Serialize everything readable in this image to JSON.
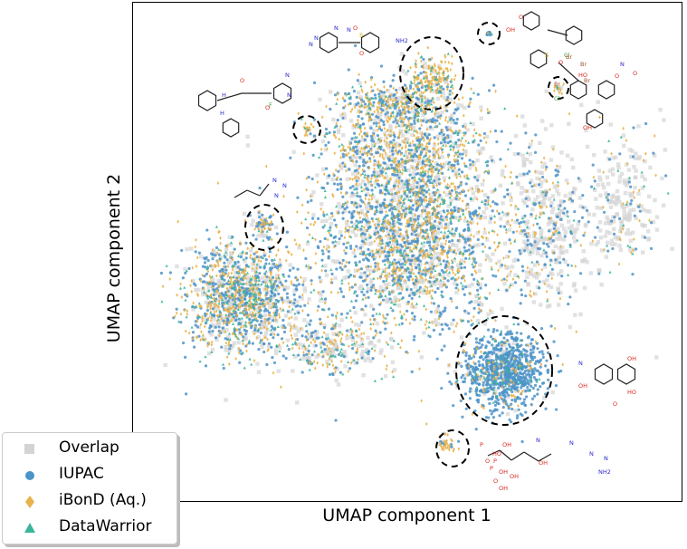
{
  "chart_data": {
    "type": "scatter",
    "title": "",
    "xlabel": "UMAP component 1",
    "ylabel": "UMAP component 2",
    "grid": false,
    "legend_placement": "lower-left",
    "series": [
      {
        "name": "Overlap",
        "marker": "square",
        "color": "#d4d4d4"
      },
      {
        "name": "IUPAC",
        "marker": "circle",
        "color": "#4c93c8"
      },
      {
        "name": "iBonD (Aq.)",
        "marker": "diamond",
        "color": "#e8b24a"
      },
      {
        "name": "DataWarrior",
        "marker": "triangle",
        "color": "#3bb59a"
      }
    ],
    "clusters": [
      {
        "region": "central main cluster",
        "dominant": "mixed"
      },
      {
        "region": "left cluster",
        "dominant": "mixed"
      },
      {
        "region": "lower-right circled region",
        "dominant": "IUPAC"
      },
      {
        "region": "top circled region",
        "dominant": "iBonD (Aq.)"
      }
    ],
    "annotations": {
      "circled_regions": 8,
      "molecule_drawings": 8,
      "atom_labels": [
        "N",
        "N",
        "O",
        "S",
        "O",
        "NH2",
        "N",
        "N",
        "H",
        "H",
        "O",
        "O",
        "F",
        "N",
        "N",
        "OH",
        "O",
        "S",
        "O",
        "Cl",
        "Br",
        "Br",
        "HO",
        "Br",
        "Cl",
        "Br",
        "OH",
        "O",
        "N",
        "O",
        "N",
        "N",
        "N",
        "N",
        "OH",
        "OH",
        "HO",
        "O",
        "HO",
        "P",
        "O",
        "P",
        "O",
        "P",
        "OH",
        "OH",
        "OH",
        "OH",
        "OH",
        "N",
        "N",
        "N",
        "N",
        "NH2"
      ]
    }
  }
}
